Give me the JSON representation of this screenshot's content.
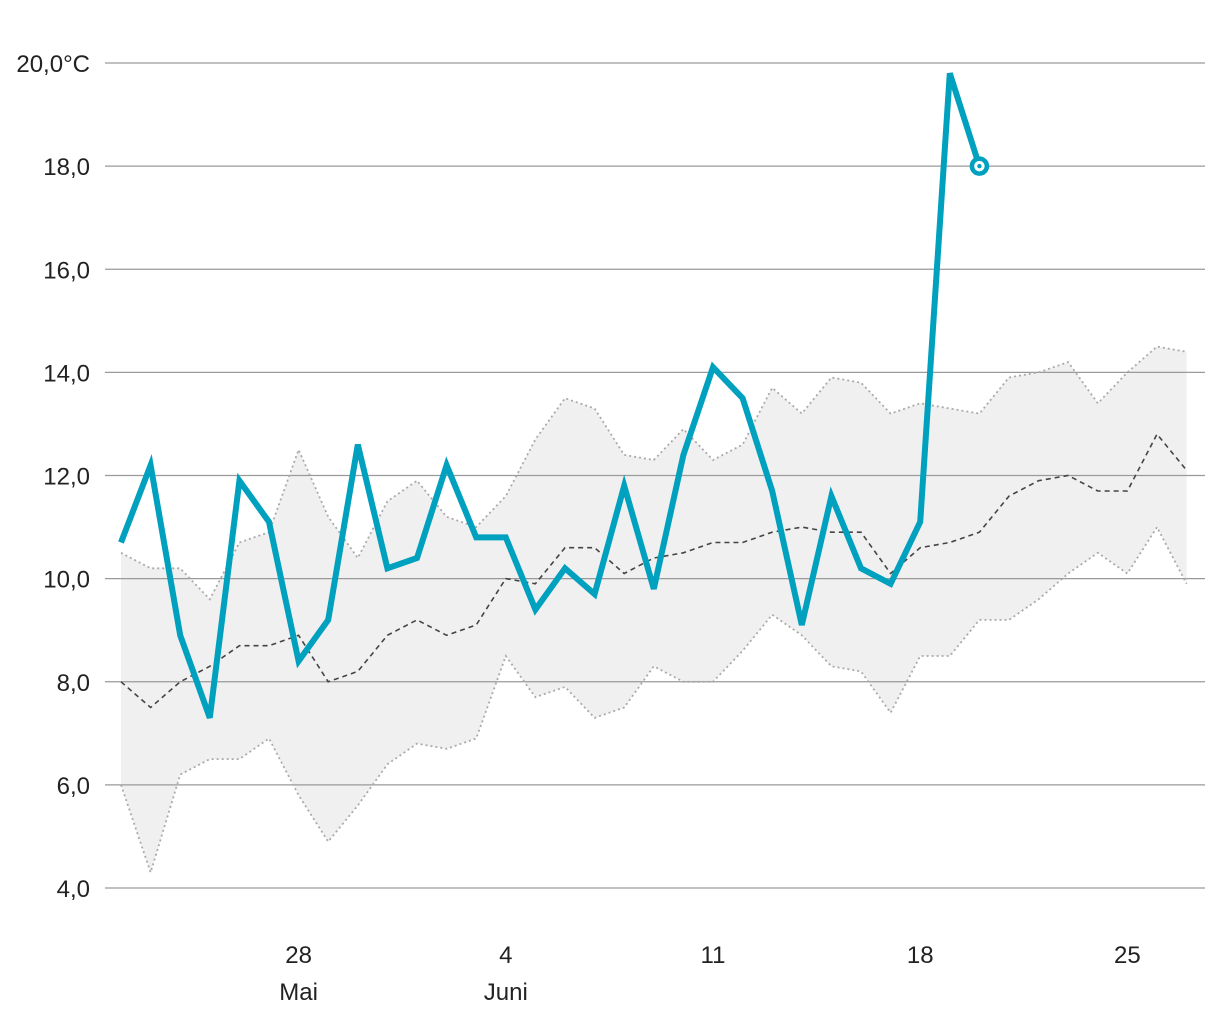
{
  "chart_data": {
    "type": "line",
    "title": "",
    "xlabel": "",
    "ylabel": "",
    "ylim": [
      4,
      20
    ],
    "y_ticks": [
      {
        "value": 20,
        "label": "20,0°C"
      },
      {
        "value": 18,
        "label": "18,0"
      },
      {
        "value": 16,
        "label": "16,0"
      },
      {
        "value": 14,
        "label": "14,0"
      },
      {
        "value": 12,
        "label": "12,0"
      },
      {
        "value": 10,
        "label": "10,0"
      },
      {
        "value": 8,
        "label": "8,0"
      },
      {
        "value": 6,
        "label": "6,0"
      },
      {
        "value": 4,
        "label": "4,0"
      }
    ],
    "x_ticks": [
      {
        "date": "2024-05-28",
        "label": "28",
        "sublabel": "Mai"
      },
      {
        "date": "2024-06-04",
        "label": "4",
        "sublabel": "Juni"
      },
      {
        "date": "2024-06-11",
        "label": "11",
        "sublabel": ""
      },
      {
        "date": "2024-06-18",
        "label": "18",
        "sublabel": ""
      },
      {
        "date": "2024-06-25",
        "label": "25",
        "sublabel": ""
      }
    ],
    "x": [
      "2024-05-22",
      "2024-05-23",
      "2024-05-24",
      "2024-05-25",
      "2024-05-26",
      "2024-05-27",
      "2024-05-28",
      "2024-05-29",
      "2024-05-30",
      "2024-05-31",
      "2024-06-01",
      "2024-06-02",
      "2024-06-03",
      "2024-06-04",
      "2024-06-05",
      "2024-06-06",
      "2024-06-07",
      "2024-06-08",
      "2024-06-09",
      "2024-06-10",
      "2024-06-11",
      "2024-06-12",
      "2024-06-13",
      "2024-06-14",
      "2024-06-15",
      "2024-06-16",
      "2024-06-17",
      "2024-06-18",
      "2024-06-19",
      "2024-06-20",
      "2024-06-21",
      "2024-06-22",
      "2024-06-23",
      "2024-06-24",
      "2024-06-25",
      "2024-06-26",
      "2024-06-27"
    ],
    "series": [
      {
        "role": "current",
        "color": "#00a0bf",
        "values": [
          10.7,
          12.2,
          8.9,
          7.3,
          11.9,
          11.1,
          8.4,
          9.2,
          12.6,
          10.2,
          10.4,
          12.2,
          10.8,
          10.8,
          9.4,
          10.2,
          9.7,
          11.8,
          9.8,
          12.4,
          14.1,
          13.5,
          11.7,
          9.1,
          11.6,
          10.2,
          9.9,
          11.1,
          19.8,
          18.0,
          null,
          null,
          null,
          null,
          null,
          null,
          null
        ]
      },
      {
        "role": "mean",
        "color": "#444444",
        "values": [
          8.0,
          7.5,
          8.0,
          8.3,
          8.7,
          8.7,
          8.9,
          8.0,
          8.2,
          8.9,
          9.2,
          8.9,
          9.1,
          10.0,
          9.9,
          10.6,
          10.6,
          10.1,
          10.4,
          10.5,
          10.7,
          10.7,
          10.9,
          11.0,
          10.9,
          10.9,
          10.1,
          10.6,
          10.7,
          10.9,
          11.6,
          11.9,
          12.0,
          11.7,
          11.7,
          12.8,
          12.1
        ]
      },
      {
        "role": "upper",
        "color": "#aaaaaa",
        "values": [
          10.5,
          10.2,
          10.2,
          9.6,
          10.7,
          10.9,
          12.5,
          11.2,
          10.4,
          11.5,
          11.9,
          11.2,
          11.0,
          11.6,
          12.7,
          13.5,
          13.3,
          12.4,
          12.3,
          12.9,
          12.3,
          12.6,
          13.7,
          13.2,
          13.9,
          13.8,
          13.2,
          13.4,
          13.3,
          13.2,
          13.9,
          14.0,
          14.2,
          13.4,
          14.0,
          14.5,
          14.4
        ]
      },
      {
        "role": "lower",
        "color": "#aaaaaa",
        "values": [
          6.0,
          4.3,
          6.2,
          6.5,
          6.5,
          6.9,
          5.8,
          4.9,
          5.6,
          6.4,
          6.8,
          6.7,
          6.9,
          8.5,
          7.7,
          7.9,
          7.3,
          7.5,
          8.3,
          8.0,
          8.0,
          8.6,
          9.3,
          8.9,
          8.3,
          8.2,
          7.4,
          8.5,
          8.5,
          9.2,
          9.2,
          9.6,
          10.1,
          10.5,
          10.1,
          11.0,
          9.9
        ]
      }
    ],
    "band_color": "#f0f0f0",
    "grid": true,
    "legend": "none"
  }
}
